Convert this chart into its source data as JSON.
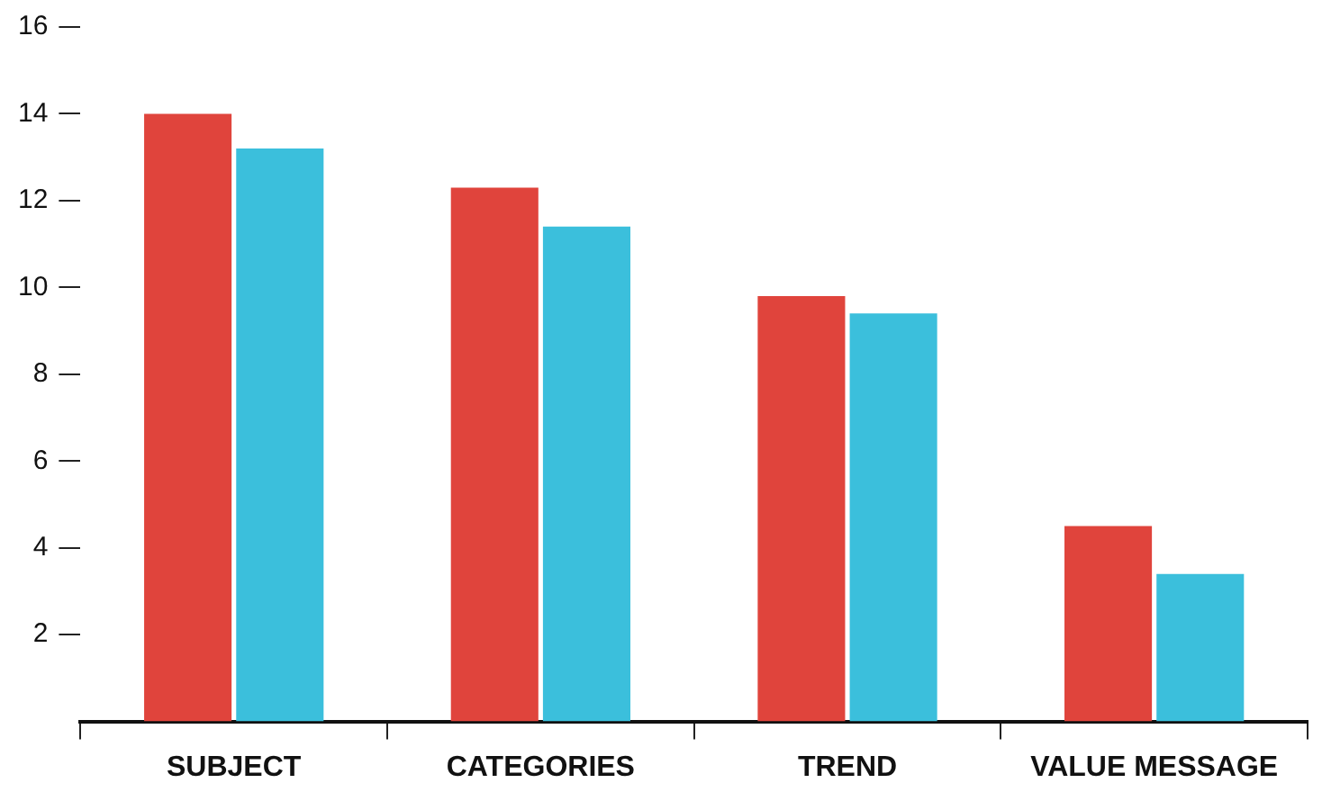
{
  "chart_data": {
    "type": "bar",
    "categories": [
      "SUBJECT",
      "CATEGORIES",
      "TREND",
      "VALUE MESSAGE"
    ],
    "series": [
      {
        "color": "#e0443c",
        "values": [
          14.0,
          12.3,
          9.8,
          4.5
        ]
      },
      {
        "color": "#3bbfdc",
        "values": [
          13.2,
          11.4,
          9.4,
          3.4
        ]
      }
    ],
    "ylim": [
      0,
      16
    ],
    "yticks": [
      2,
      4,
      6,
      8,
      10,
      12,
      14,
      16
    ],
    "grid": false,
    "legend": false
  }
}
